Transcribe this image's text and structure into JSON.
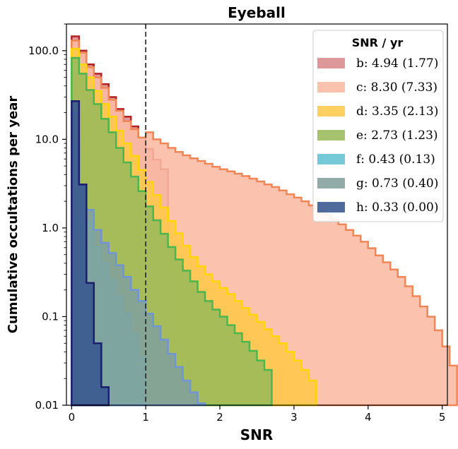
{
  "chart_data": {
    "type": "area",
    "title": "Eyeball",
    "xlabel": "SNR",
    "ylabel": "Cumulative occultations per year",
    "x_scale": "linear",
    "y_scale": "log",
    "xlim": [
      -0.07,
      5.07
    ],
    "ylim": [
      0.01,
      200
    ],
    "x_ticks": [
      "0",
      "1",
      "2",
      "3",
      "4",
      "5"
    ],
    "y_ticks": [
      "0.01",
      "0.1",
      "1.0",
      "10.0",
      "100.0"
    ],
    "vline_x": 1.0,
    "grid": false,
    "legend": {
      "title": "SNR / yr",
      "position": "top-right"
    },
    "bin_width": 0.1,
    "series": [
      {
        "name": "b",
        "label": "b: 4.94 (1.77)",
        "fill": "#d98a8c",
        "edge": "#b22222",
        "values": [
          145,
          100,
          70,
          55,
          42,
          30,
          22,
          18,
          14,
          10.5,
          7.8,
          5.9,
          4.6
        ]
      },
      {
        "name": "c",
        "label": "c: 8.30 (7.33)",
        "fill": "#fbbba3",
        "edge": "#f28555",
        "values": [
          130,
          95,
          65,
          50,
          38,
          28,
          21,
          16,
          13,
          10.5,
          12,
          10,
          9,
          8,
          7.2,
          6.6,
          6.1,
          5.7,
          5.3,
          4.9,
          4.6,
          4.35,
          4.1,
          3.85,
          3.6,
          3.35,
          3.1,
          2.9,
          2.65,
          2.4,
          2.2,
          2.0,
          1.8,
          1.6,
          1.42,
          1.25,
          1.1,
          0.95,
          0.82,
          0.7,
          0.59,
          0.49,
          0.41,
          0.34,
          0.28,
          0.22,
          0.17,
          0.13,
          0.1,
          0.07,
          0.046,
          0.028
        ]
      },
      {
        "name": "d",
        "label": "d: 3.35 (2.13)",
        "fill": "#ffc84a",
        "edge": "#ffd500",
        "values": [
          105,
          70,
          50,
          35,
          25,
          18,
          12.5,
          9.0,
          6.5,
          4.5,
          3.3,
          2.35,
          1.7,
          1.2,
          0.87,
          0.63,
          0.47,
          0.37,
          0.3,
          0.25,
          0.21,
          0.18,
          0.15,
          0.125,
          0.105,
          0.087,
          0.072,
          0.06,
          0.05,
          0.04,
          0.032,
          0.025,
          0.019
        ]
      },
      {
        "name": "e",
        "label": "e: 2.73 (1.23)",
        "fill": "#9ab95a",
        "edge": "#4cb64e",
        "values": [
          83,
          55,
          36,
          25,
          17,
          12,
          8.0,
          5.5,
          3.8,
          2.6,
          1.75,
          1.22,
          0.86,
          0.61,
          0.44,
          0.33,
          0.25,
          0.19,
          0.15,
          0.12,
          0.1,
          0.08,
          0.065,
          0.052,
          0.041,
          0.032,
          0.025
        ]
      },
      {
        "name": "f",
        "label": "f: 0.43 (0.13)",
        "fill": "#63c1d0",
        "edge": "#55bcd3",
        "values": [
          9,
          3.1,
          1.2,
          0.62,
          0.4,
          0.26,
          0.17,
          0.11,
          0.065,
          0.035
        ]
      },
      {
        "name": "g",
        "label": "g: 0.73 (0.40)",
        "fill": "#82a09c",
        "edge": "#6f95d8",
        "values": [
          20,
          3.0,
          1.6,
          0.95,
          0.68,
          0.52,
          0.38,
          0.28,
          0.2,
          0.15,
          0.108,
          0.078,
          0.055,
          0.038,
          0.027,
          0.019,
          0.014,
          0.0105
        ]
      },
      {
        "name": "h",
        "label": "h: 0.33 (0.00)",
        "fill": "#37578e",
        "edge": "#1b1f6e",
        "values": [
          27,
          3.1,
          0.24,
          0.05,
          0.016
        ]
      }
    ]
  }
}
